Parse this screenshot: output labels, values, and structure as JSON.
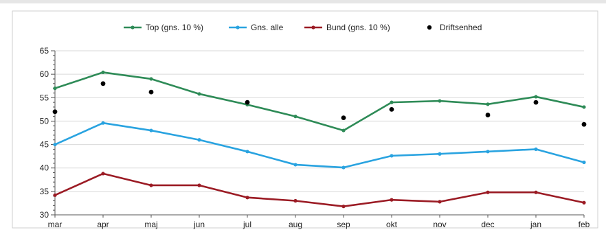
{
  "chart_data": {
    "type": "line",
    "categories": [
      "mar",
      "apr",
      "maj",
      "jun",
      "jul",
      "aug",
      "sep",
      "okt",
      "nov",
      "dec",
      "jan",
      "feb"
    ],
    "y_ticks": [
      "30",
      "35",
      "40",
      "45",
      "50",
      "55",
      "60",
      "65"
    ],
    "ylim": [
      30,
      65
    ],
    "grid": true,
    "legend_position": "top",
    "series": [
      {
        "name": "Top (gns. 10 %)",
        "kind": "line",
        "color": "#2e8b57",
        "values": [
          57.0,
          60.4,
          59.0,
          55.8,
          53.5,
          51.0,
          48.0,
          54.0,
          54.3,
          53.6,
          55.2,
          53.0
        ]
      },
      {
        "name": "Gns. alle",
        "kind": "line",
        "color": "#29a3e0",
        "values": [
          45.0,
          49.6,
          48.0,
          46.0,
          43.5,
          40.7,
          40.1,
          42.6,
          43.0,
          43.5,
          44.0,
          41.2
        ]
      },
      {
        "name": "Bund (gns. 10 %)",
        "kind": "line",
        "color": "#9b1b24",
        "values": [
          34.2,
          38.8,
          36.3,
          36.3,
          33.7,
          33.0,
          31.8,
          33.2,
          32.8,
          34.8,
          34.8,
          32.6
        ]
      },
      {
        "name": "Driftsenhed",
        "kind": "scatter",
        "color": "#000000",
        "values": [
          52.0,
          58.0,
          56.2,
          null,
          54.0,
          null,
          50.7,
          52.5,
          null,
          51.3,
          54.0,
          49.3
        ]
      }
    ]
  }
}
